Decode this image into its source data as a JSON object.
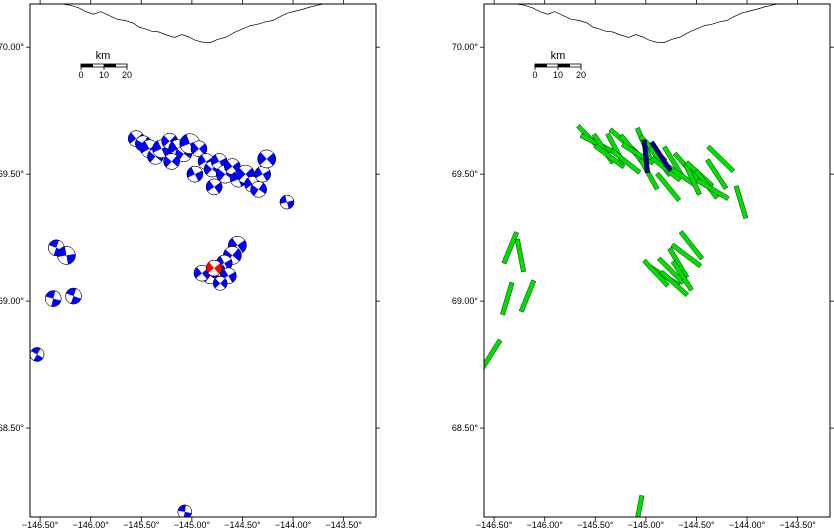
{
  "maps": [
    {
      "id": "left",
      "lat_ticks": [
        {
          "value": 70.0,
          "label": "70.00°"
        },
        {
          "value": 69.5,
          "label": "69.50°"
        },
        {
          "value": 69.0,
          "label": "69.00°"
        },
        {
          "value": 68.5,
          "label": "68.50°"
        }
      ],
      "lon_ticks": [
        {
          "value": -146.5,
          "label": "−146.50°"
        },
        {
          "value": -146.0,
          "label": "−146.00°"
        },
        {
          "value": -145.5,
          "label": "−145.50°"
        },
        {
          "value": -145.0,
          "label": "−145.00°"
        },
        {
          "value": -144.5,
          "label": "−144.50°"
        },
        {
          "value": -144.0,
          "label": "−144.00°"
        },
        {
          "value": -143.5,
          "label": "−143.50°"
        }
      ],
      "scale_bar": {
        "title": "km",
        "labels": [
          "0",
          "10",
          "20"
        ]
      },
      "layer": "focal-mechanisms"
    },
    {
      "id": "right",
      "lat_ticks": [
        {
          "value": 70.0,
          "label": "70.00°"
        },
        {
          "value": 69.5,
          "label": "69.50°"
        },
        {
          "value": 69.0,
          "label": "69.00°"
        },
        {
          "value": 68.5,
          "label": "68.50°"
        }
      ],
      "lon_ticks": [
        {
          "value": -146.5,
          "label": "−146.50°"
        },
        {
          "value": -146.0,
          "label": "−146.00°"
        },
        {
          "value": -145.5,
          "label": "−145.50°"
        },
        {
          "value": -145.0,
          "label": "−145.00°"
        },
        {
          "value": -144.5,
          "label": "−144.50°"
        },
        {
          "value": -144.0,
          "label": "−144.00°"
        },
        {
          "value": -143.5,
          "label": "−143.50°"
        }
      ],
      "scale_bar": {
        "title": "km",
        "labels": [
          "0",
          "10",
          "20"
        ]
      },
      "layer": "strike-bars"
    }
  ],
  "extent": {
    "lon_min": -146.6,
    "lon_max": -143.18,
    "lat_min": 68.15,
    "lat_max": 70.17
  },
  "colors": {
    "beachball_fill": "#0000ff",
    "beachball_highlight": "#ff0000",
    "strike_bar": "#00dd00",
    "strike_bar_highlight": "#00008b",
    "coastline": "#000000",
    "frame": "#000000"
  },
  "coastline": [
    [
      -146.28,
      70.17
    ],
    [
      -146.2,
      70.165
    ],
    [
      -146.12,
      70.155
    ],
    [
      -146.05,
      70.14
    ],
    [
      -145.97,
      70.13
    ],
    [
      -145.9,
      70.14
    ],
    [
      -145.82,
      70.125
    ],
    [
      -145.74,
      70.11
    ],
    [
      -145.66,
      70.105
    ],
    [
      -145.58,
      70.095
    ],
    [
      -145.52,
      70.078
    ],
    [
      -145.46,
      70.072
    ],
    [
      -145.4,
      70.063
    ],
    [
      -145.33,
      70.06
    ],
    [
      -145.25,
      70.048
    ],
    [
      -145.17,
      70.038
    ],
    [
      -145.1,
      70.05
    ],
    [
      -145.03,
      70.04
    ],
    [
      -144.97,
      70.028
    ],
    [
      -144.9,
      70.02
    ],
    [
      -144.82,
      70.018
    ],
    [
      -144.75,
      70.03
    ],
    [
      -144.66,
      70.04
    ],
    [
      -144.58,
      70.058
    ],
    [
      -144.5,
      70.072
    ],
    [
      -144.42,
      70.085
    ],
    [
      -144.35,
      70.09
    ],
    [
      -144.27,
      70.1
    ],
    [
      -144.2,
      70.105
    ],
    [
      -144.12,
      70.122
    ],
    [
      -144.05,
      70.135
    ],
    [
      -143.98,
      70.142
    ],
    [
      -143.9,
      70.15
    ],
    [
      -143.83,
      70.158
    ],
    [
      -143.76,
      70.165
    ],
    [
      -143.7,
      70.17
    ]
  ],
  "events": [
    {
      "lon": -145.55,
      "lat": 69.64,
      "strike": 320,
      "r": 8
    },
    {
      "lon": -145.48,
      "lat": 69.62,
      "strike": 300,
      "r": 8
    },
    {
      "lon": -145.42,
      "lat": 69.6,
      "strike": 330,
      "r": 9
    },
    {
      "lon": -145.36,
      "lat": 69.57,
      "strike": 310,
      "r": 8
    },
    {
      "lon": -145.3,
      "lat": 69.6,
      "strike": 335,
      "r": 9
    },
    {
      "lon": -145.22,
      "lat": 69.63,
      "strike": 315,
      "r": 8
    },
    {
      "lon": -145.14,
      "lat": 69.6,
      "strike": 325,
      "r": 9
    },
    {
      "lon": -145.08,
      "lat": 69.58,
      "strike": 305,
      "r": 8
    },
    {
      "lon": -145.02,
      "lat": 69.62,
      "strike": 340,
      "r": 10
    },
    {
      "lon": -144.93,
      "lat": 69.6,
      "strike": 318,
      "r": 8
    },
    {
      "lon": -144.86,
      "lat": 69.55,
      "strike": 328,
      "r": 8
    },
    {
      "lon": -144.8,
      "lat": 69.52,
      "strike": 312,
      "r": 8
    },
    {
      "lon": -144.73,
      "lat": 69.55,
      "strike": 332,
      "r": 8
    },
    {
      "lon": -144.67,
      "lat": 69.5,
      "strike": 308,
      "r": 9
    },
    {
      "lon": -144.6,
      "lat": 69.53,
      "strike": 322,
      "r": 8
    },
    {
      "lon": -144.54,
      "lat": 69.48,
      "strike": 338,
      "r": 8
    },
    {
      "lon": -144.47,
      "lat": 69.5,
      "strike": 316,
      "r": 9
    },
    {
      "lon": -144.4,
      "lat": 69.46,
      "strike": 326,
      "r": 8
    },
    {
      "lon": -144.34,
      "lat": 69.44,
      "strike": 304,
      "r": 8
    },
    {
      "lon": -144.3,
      "lat": 69.5,
      "strike": 330,
      "r": 8
    },
    {
      "lon": -144.26,
      "lat": 69.56,
      "strike": 318,
      "r": 9
    },
    {
      "lon": -144.78,
      "lat": 69.45,
      "strike": 324,
      "r": 8
    },
    {
      "lon": -145.2,
      "lat": 69.55,
      "strike": 312,
      "r": 8
    },
    {
      "lon": -144.97,
      "lat": 69.5,
      "strike": 334,
      "r": 8
    },
    {
      "lon": -144.06,
      "lat": 69.39,
      "strike": 345,
      "r": 7
    },
    {
      "lon": -146.34,
      "lat": 69.21,
      "strike": 20,
      "r": 8
    },
    {
      "lon": -146.24,
      "lat": 69.18,
      "strike": 350,
      "r": 9
    },
    {
      "lon": -146.37,
      "lat": 69.01,
      "strike": 15,
      "r": 8
    },
    {
      "lon": -146.17,
      "lat": 69.02,
      "strike": 20,
      "r": 8
    },
    {
      "lon": -146.53,
      "lat": 68.79,
      "strike": 30,
      "r": 7
    },
    {
      "lon": -144.55,
      "lat": 69.22,
      "strike": 325,
      "r": 9
    },
    {
      "lon": -144.6,
      "lat": 69.18,
      "strike": 310,
      "r": 9
    },
    {
      "lon": -144.68,
      "lat": 69.15,
      "strike": 332,
      "r": 8
    },
    {
      "lon": -144.75,
      "lat": 69.12,
      "strike": 318,
      "r": 8
    },
    {
      "lon": -144.82,
      "lat": 69.1,
      "strike": 305,
      "r": 8
    },
    {
      "lon": -144.9,
      "lat": 69.11,
      "strike": 320,
      "r": 8
    },
    {
      "lon": -144.64,
      "lat": 69.1,
      "strike": 330,
      "r": 8
    },
    {
      "lon": -144.72,
      "lat": 69.07,
      "strike": 315,
      "r": 7
    },
    {
      "lon": -145.07,
      "lat": 68.17,
      "strike": 10,
      "r": 7
    }
  ],
  "highlight_event": {
    "lon": -144.78,
    "lat": 69.13,
    "strike": 320,
    "r": 8
  },
  "highlight_bars": [
    {
      "lon": -145.0,
      "lat": 69.57,
      "strike": 355,
      "len": 0.13
    },
    {
      "lon": -144.85,
      "lat": 69.57,
      "strike": 330,
      "len": 0.13
    }
  ]
}
